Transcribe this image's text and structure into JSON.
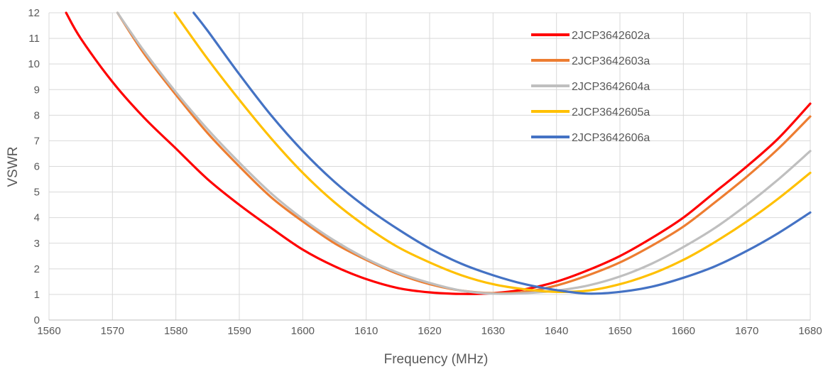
{
  "chart_data": {
    "type": "line",
    "title": "",
    "xlabel": "Frequency (MHz)",
    "ylabel": "VSWR",
    "xlim": [
      1560,
      1680
    ],
    "ylim": [
      0,
      12
    ],
    "xticks": [
      1560,
      1570,
      1580,
      1590,
      1600,
      1610,
      1620,
      1630,
      1640,
      1650,
      1660,
      1670,
      1680
    ],
    "yticks": [
      0,
      1,
      2,
      3,
      4,
      5,
      6,
      7,
      8,
      9,
      10,
      11,
      12
    ],
    "grid": true,
    "legend_position": "top-right",
    "series": [
      {
        "name": "2JCP3642602a",
        "color": "#ff0000",
        "x": [
          1562.7,
          1565,
          1570,
          1575,
          1580,
          1585,
          1590,
          1595,
          1600,
          1605,
          1610,
          1615,
          1620,
          1625,
          1630,
          1635,
          1640,
          1645,
          1650,
          1655,
          1660,
          1665,
          1670,
          1675,
          1680
        ],
        "y": [
          12,
          11,
          9.3,
          7.9,
          6.7,
          5.5,
          4.5,
          3.6,
          2.75,
          2.1,
          1.6,
          1.25,
          1.08,
          1.02,
          1.05,
          1.2,
          1.5,
          1.95,
          2.5,
          3.2,
          4.0,
          5.0,
          6.0,
          7.1,
          8.45
        ]
      },
      {
        "name": "2JCP3642603a",
        "color": "#ed7d31",
        "x": [
          1570.8,
          1575,
          1580,
          1585,
          1590,
          1595,
          1600,
          1605,
          1610,
          1615,
          1620,
          1625,
          1630,
          1635,
          1640,
          1645,
          1650,
          1655,
          1660,
          1665,
          1670,
          1675,
          1680
        ],
        "y": [
          12,
          10.4,
          8.8,
          7.3,
          6.0,
          4.8,
          3.85,
          3.0,
          2.35,
          1.8,
          1.4,
          1.15,
          1.05,
          1.1,
          1.35,
          1.75,
          2.25,
          2.9,
          3.65,
          4.6,
          5.6,
          6.7,
          7.95
        ]
      },
      {
        "name": "2JCP3642604a",
        "color": "#bfbfbf",
        "x": [
          1570.8,
          1575,
          1580,
          1585,
          1590,
          1595,
          1600,
          1605,
          1610,
          1615,
          1620,
          1625,
          1630,
          1635,
          1640,
          1645,
          1650,
          1655,
          1660,
          1665,
          1670,
          1675,
          1680
        ],
        "y": [
          12,
          10.5,
          8.9,
          7.45,
          6.15,
          4.95,
          3.95,
          3.1,
          2.4,
          1.85,
          1.45,
          1.15,
          1.03,
          1.05,
          1.15,
          1.35,
          1.7,
          2.2,
          2.85,
          3.6,
          4.5,
          5.5,
          6.6
        ]
      },
      {
        "name": "2JCP3642605a",
        "color": "#ffc000",
        "x": [
          1579.8,
          1585,
          1590,
          1595,
          1600,
          1605,
          1610,
          1615,
          1620,
          1625,
          1630,
          1635,
          1640,
          1645,
          1650,
          1655,
          1660,
          1665,
          1670,
          1675,
          1680
        ],
        "y": [
          12,
          10.2,
          8.6,
          7.1,
          5.75,
          4.6,
          3.65,
          2.85,
          2.25,
          1.75,
          1.4,
          1.2,
          1.1,
          1.15,
          1.4,
          1.8,
          2.35,
          3.05,
          3.85,
          4.75,
          5.75
        ]
      },
      {
        "name": "2JCP3642606a",
        "color": "#4472c4",
        "x": [
          1582.8,
          1585,
          1590,
          1595,
          1600,
          1605,
          1610,
          1615,
          1620,
          1625,
          1630,
          1635,
          1640,
          1645,
          1650,
          1655,
          1660,
          1665,
          1670,
          1675,
          1680
        ],
        "y": [
          12,
          11.3,
          9.6,
          8.0,
          6.6,
          5.4,
          4.4,
          3.55,
          2.8,
          2.2,
          1.75,
          1.4,
          1.17,
          1.03,
          1.1,
          1.3,
          1.65,
          2.1,
          2.7,
          3.4,
          4.2
        ]
      }
    ]
  }
}
